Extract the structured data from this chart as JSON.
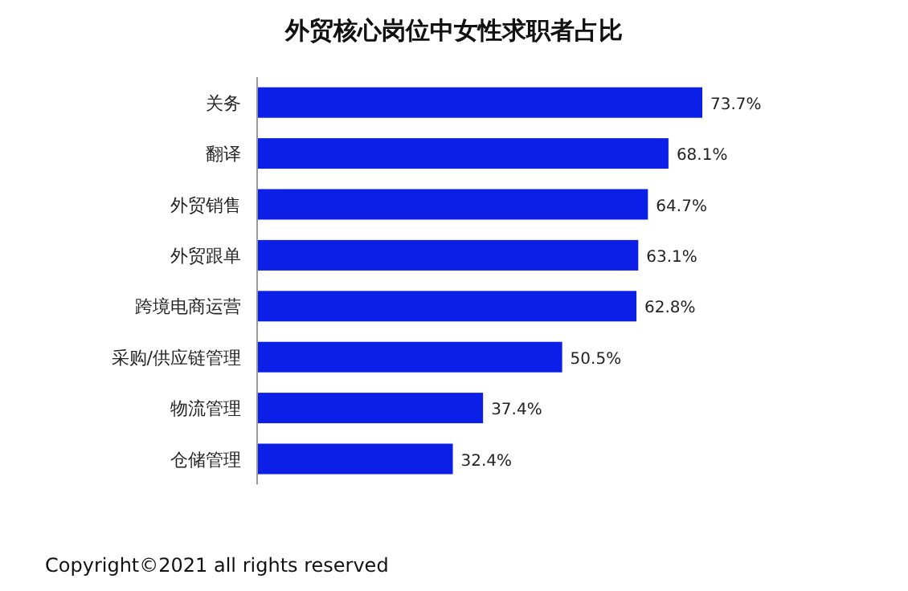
{
  "chart_data": {
    "type": "bar",
    "orientation": "horizontal",
    "title": "外贸核心岗位中女性求职者占比",
    "categories": [
      "关务",
      "翻译",
      "外贸销售",
      "外贸跟单",
      "跨境电商运营",
      "采购/供应链管理",
      "物流管理",
      "仓储管理"
    ],
    "values": [
      73.7,
      68.1,
      64.7,
      63.1,
      62.8,
      50.5,
      37.4,
      32.4
    ],
    "value_labels": [
      "73.7%",
      "68.1%",
      "64.7%",
      "63.1%",
      "62.8%",
      "50.5%",
      "37.4%",
      "32.4%"
    ],
    "color": "#0b1fe6",
    "annotations": [
      "Copyright©2021 all rights reserved"
    ]
  }
}
